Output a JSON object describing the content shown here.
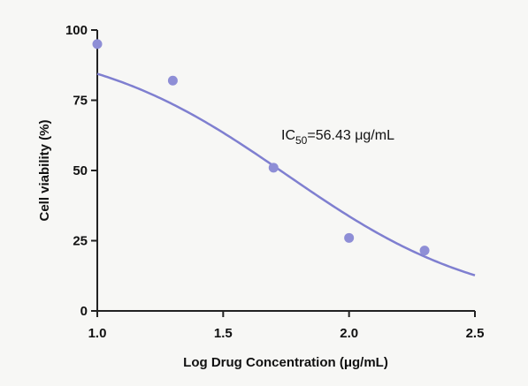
{
  "chart_data": {
    "type": "scatter",
    "title": "",
    "xlabel": "Log Drug Concentration (μg/mL)",
    "ylabel": "Cell viability (%)",
    "xlim": [
      1.0,
      2.5
    ],
    "ylim": [
      0,
      100
    ],
    "x_ticks": [
      1.0,
      1.5,
      2.0,
      2.5
    ],
    "x_tick_labels": [
      "1.0",
      "1.5",
      "2.0",
      "2.5"
    ],
    "y_ticks": [
      0,
      25,
      50,
      75,
      100
    ],
    "y_tick_labels": [
      "0",
      "25",
      "50",
      "75",
      "100"
    ],
    "grid": false,
    "points": {
      "x": [
        1.0,
        1.3,
        1.7,
        2.0,
        2.3
      ],
      "y": [
        95,
        82,
        51,
        26,
        21.5
      ]
    },
    "fit_curve": {
      "model": "4PL",
      "top": 97,
      "bottom": 0,
      "log_ic50": 1.7515,
      "hill_slope": -1.1,
      "x_range": [
        1.0,
        2.5
      ]
    },
    "annotation": {
      "prefix": "IC",
      "subscript": "50",
      "suffix": "=56.43 μg/mL"
    },
    "colors": {
      "points": "#8e8ed6",
      "curve": "#7f7fd0",
      "axis": "#222222"
    }
  }
}
